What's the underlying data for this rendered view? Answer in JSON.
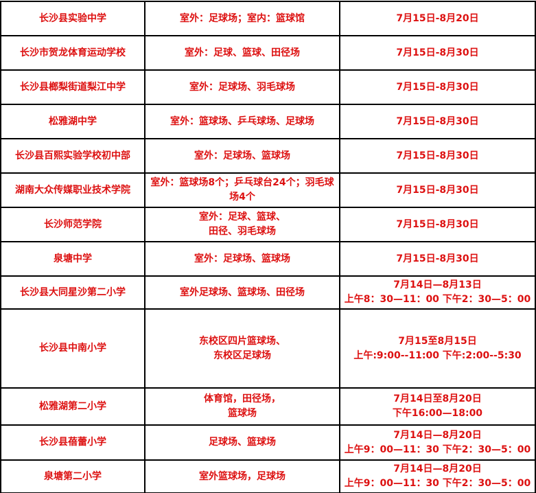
{
  "colors": {
    "text_red": "#dd1111",
    "border_black": "#000000",
    "background": "#ffffff"
  },
  "table": {
    "rows": [
      {
        "school": "长沙县实验中学",
        "facilities": [
          "室外：足球场；室内：篮球馆"
        ],
        "dates": [
          "7月15日-8月20日"
        ]
      },
      {
        "school": "长沙市贺龙体育运动学校",
        "facilities": [
          "室外：足球、篮球、田径场"
        ],
        "dates": [
          "7月15日-8月30日"
        ]
      },
      {
        "school": "长沙县榔梨街道梨江中学",
        "facilities": [
          "室外：足球场、羽毛球场"
        ],
        "dates": [
          "7月15日-8月30日"
        ]
      },
      {
        "school": "松雅湖中学",
        "facilities": [
          "室外：篮球场、乒乓球场、足球场"
        ],
        "dates": [
          "7月15日-8月30日"
        ]
      },
      {
        "school": "长沙县百熙实验学校初中部",
        "facilities": [
          "室外：足球场、篮球场"
        ],
        "dates": [
          "7月15日-8月30日"
        ]
      },
      {
        "school": "湖南大众传媒职业技术学院",
        "facilities": [
          "室外：篮球场8个；乒乓球台24个；羽毛球场4个"
        ],
        "dates": [
          "7月15日-8月30日"
        ]
      },
      {
        "school": "长沙师范学院",
        "facilities": [
          "室外：足球、篮球、",
          "田径、羽毛球场"
        ],
        "dates": [
          "7月15日-8月30日"
        ]
      },
      {
        "school": "泉塘中学",
        "facilities": [
          "室外：足球场、篮球场"
        ],
        "dates": [
          "7月15日-8月30日"
        ]
      },
      {
        "school": "长沙县大同星沙第二小学",
        "facilities": [
          "室外足球场、篮球场、田径场"
        ],
        "dates": [
          "7月14日—8月13日",
          "上午8：30—11：00 下午2：30—5：00"
        ]
      },
      {
        "school": "长沙县中南小学",
        "facilities": [
          "东校区四片篮球场、",
          "东校区足球场"
        ],
        "dates": [
          "7月15至8月15日",
          "上午:9:00--11:00 下午:2:00--5:30"
        ]
      },
      {
        "school": "松雅湖第二小学",
        "facilities": [
          "体育馆，田径场，",
          "篮球场"
        ],
        "dates": [
          "7月14日至8月20日",
          "下午16:00—18:00"
        ]
      },
      {
        "school": "长沙县蓓蕾小学",
        "facilities": [
          "足球场、篮球场"
        ],
        "dates": [
          "7月14日—8月20日",
          "上午9：00—11：30 下午2：30—5：00"
        ]
      },
      {
        "school": "泉塘第二小学",
        "facilities": [
          "室外篮球场，足球场"
        ],
        "dates": [
          "7月14日—8月20日",
          "上午9：00—11：30 下午2：30—5：00"
        ]
      }
    ]
  }
}
